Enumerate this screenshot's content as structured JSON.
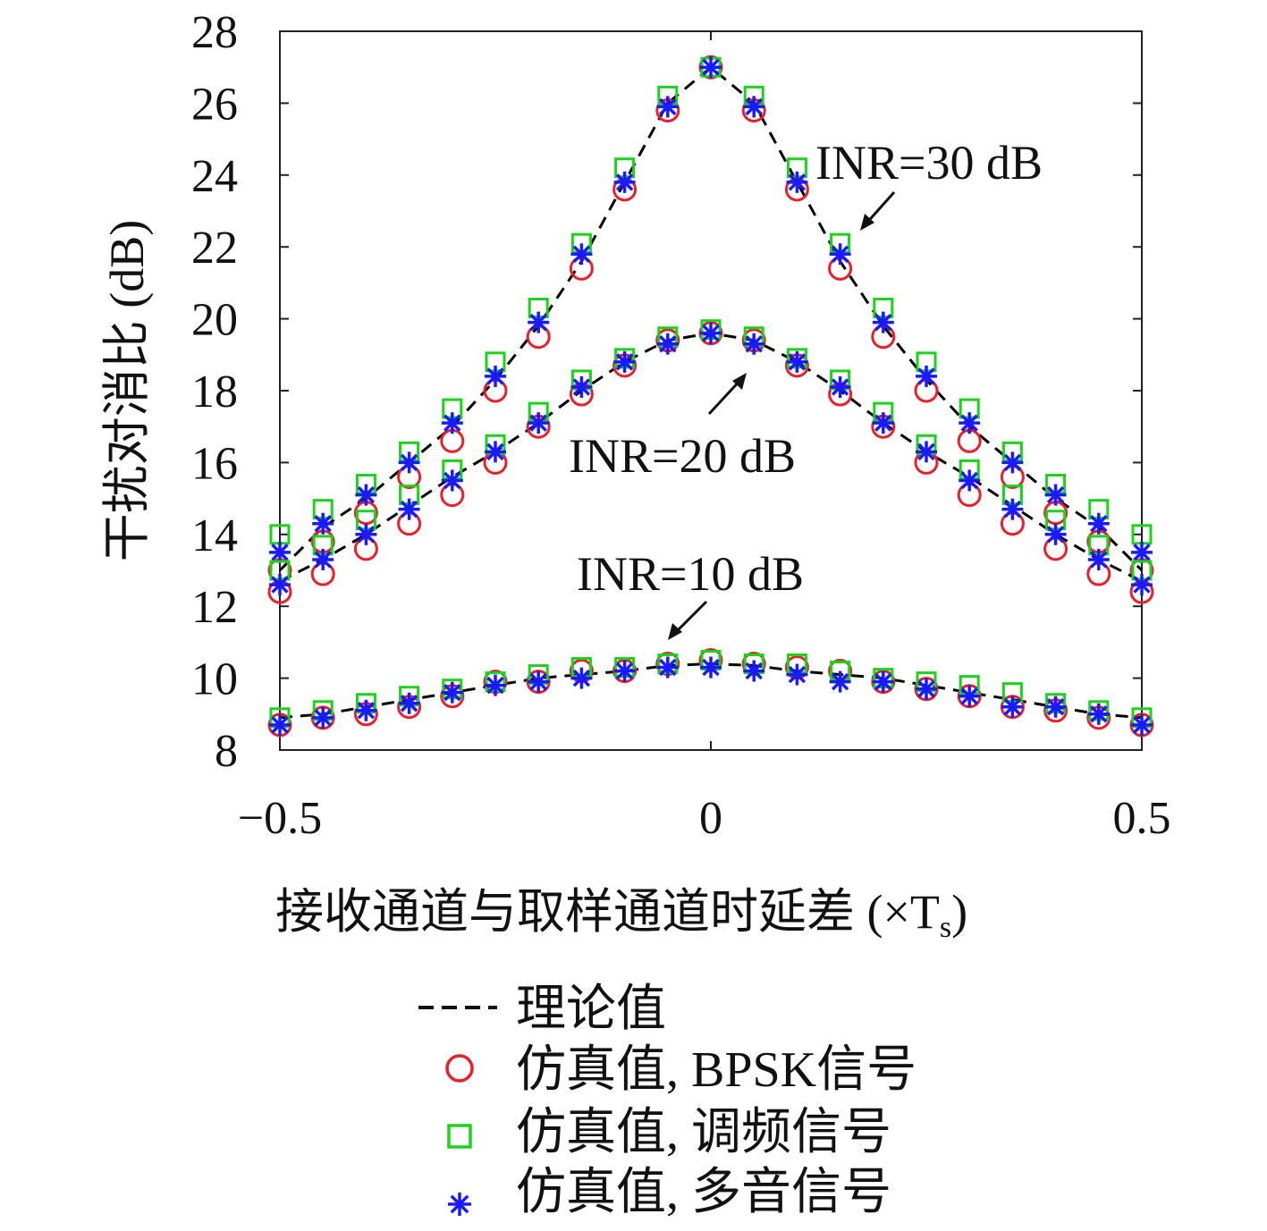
{
  "chart_data": {
    "type": "scatter",
    "xlabel": "接收通道与取样通道时延差 (×T",
    "xlabel_sub": "s",
    "xlabel_close": ")",
    "ylabel": "干扰对消比 (dB)",
    "xlim": [
      -0.5,
      0.5
    ],
    "ylim": [
      8,
      28
    ],
    "xticks": [
      {
        "value": -0.5,
        "label": "−0.5"
      },
      {
        "value": 0,
        "label": "0"
      },
      {
        "value": 0.5,
        "label": "0.5"
      }
    ],
    "yticks": [
      8,
      10,
      12,
      14,
      16,
      18,
      20,
      22,
      24,
      26,
      28
    ],
    "grid": false,
    "legend_position": "below",
    "x": [
      -0.5,
      -0.45,
      -0.4,
      -0.35,
      -0.3,
      -0.25,
      -0.2,
      -0.15,
      -0.1,
      -0.05,
      0,
      0.05,
      0.1,
      0.15,
      0.2,
      0.25,
      0.3,
      0.35,
      0.4,
      0.45,
      0.5
    ],
    "groups": [
      {
        "annotation": "INR=30 dB",
        "theory": [
          13.0,
          14.2,
          15.0,
          16.0,
          17.0,
          18.3,
          19.8,
          21.6,
          23.8,
          26.0,
          27.0,
          26.0,
          23.8,
          21.6,
          19.8,
          18.3,
          17.0,
          16.0,
          15.0,
          14.2,
          13.0
        ],
        "bpsk": [
          13.0,
          13.8,
          14.6,
          15.6,
          16.6,
          18.0,
          19.5,
          21.4,
          23.6,
          25.8,
          27.0,
          25.8,
          23.6,
          21.4,
          19.5,
          18.0,
          16.6,
          15.6,
          14.6,
          13.8,
          13.0
        ],
        "fm": [
          14.0,
          14.7,
          15.4,
          16.3,
          17.5,
          18.8,
          20.3,
          22.1,
          24.2,
          26.2,
          27.0,
          26.2,
          24.2,
          22.1,
          20.3,
          18.8,
          17.5,
          16.3,
          15.4,
          14.7,
          14.0
        ],
        "multitone": [
          13.5,
          14.3,
          15.1,
          16.0,
          17.1,
          18.4,
          19.9,
          21.8,
          23.8,
          25.9,
          27.0,
          25.9,
          23.8,
          21.8,
          19.9,
          18.4,
          17.1,
          16.0,
          15.1,
          14.3,
          13.5
        ]
      },
      {
        "annotation": "INR=20 dB",
        "theory": [
          12.7,
          13.3,
          14.0,
          14.8,
          15.6,
          16.3,
          17.1,
          18.0,
          18.8,
          19.4,
          19.6,
          19.4,
          18.8,
          18.0,
          17.1,
          16.3,
          15.6,
          14.8,
          14.0,
          13.3,
          12.7
        ],
        "bpsk": [
          12.4,
          12.9,
          13.6,
          14.3,
          15.1,
          16.0,
          17.0,
          17.9,
          18.7,
          19.4,
          19.6,
          19.4,
          18.7,
          17.9,
          17.0,
          16.0,
          15.1,
          14.3,
          13.6,
          12.9,
          12.4
        ],
        "fm": [
          13.0,
          13.7,
          14.4,
          15.1,
          15.8,
          16.5,
          17.4,
          18.3,
          18.9,
          19.5,
          19.7,
          19.5,
          18.9,
          18.3,
          17.4,
          16.5,
          15.8,
          15.1,
          14.4,
          13.7,
          13.0
        ],
        "multitone": [
          12.6,
          13.3,
          14.0,
          14.7,
          15.5,
          16.3,
          17.1,
          18.1,
          18.8,
          19.3,
          19.6,
          19.3,
          18.8,
          18.1,
          17.1,
          16.3,
          15.5,
          14.7,
          14.0,
          13.3,
          12.6
        ]
      },
      {
        "annotation": "INR=10 dB",
        "theory": [
          8.9,
          9.0,
          9.2,
          9.4,
          9.6,
          9.8,
          10.0,
          10.1,
          10.2,
          10.35,
          10.4,
          10.35,
          10.2,
          10.1,
          10.0,
          9.8,
          9.6,
          9.4,
          9.2,
          9.0,
          8.9
        ],
        "bpsk": [
          8.7,
          8.9,
          9.0,
          9.2,
          9.5,
          9.9,
          9.9,
          10.2,
          10.2,
          10.4,
          10.5,
          10.4,
          10.3,
          10.2,
          9.9,
          9.7,
          9.5,
          9.2,
          9.1,
          8.9,
          8.7
        ],
        "fm": [
          8.9,
          9.1,
          9.3,
          9.5,
          9.7,
          9.9,
          10.1,
          10.3,
          10.3,
          10.4,
          10.5,
          10.4,
          10.4,
          10.2,
          10.0,
          9.9,
          9.8,
          9.6,
          9.3,
          9.1,
          8.9
        ],
        "multitone": [
          8.7,
          8.9,
          9.1,
          9.3,
          9.6,
          9.8,
          9.9,
          10.0,
          10.2,
          10.3,
          10.3,
          10.2,
          10.1,
          9.9,
          9.9,
          9.7,
          9.5,
          9.2,
          9.2,
          9.0,
          8.7
        ]
      }
    ],
    "legend": [
      {
        "key": "theory",
        "label": "理论值",
        "marker": "dashed-line",
        "color": "#000000"
      },
      {
        "key": "bpsk",
        "label": "仿真值, BPSK信号",
        "marker": "circle",
        "color": "#e8202a"
      },
      {
        "key": "fm",
        "label": "仿真值, 调频信号",
        "marker": "square",
        "color": "#1ad31a"
      },
      {
        "key": "multitone",
        "label": "仿真值, 多音信号",
        "marker": "asterisk",
        "color": "#1a1aff"
      }
    ]
  }
}
